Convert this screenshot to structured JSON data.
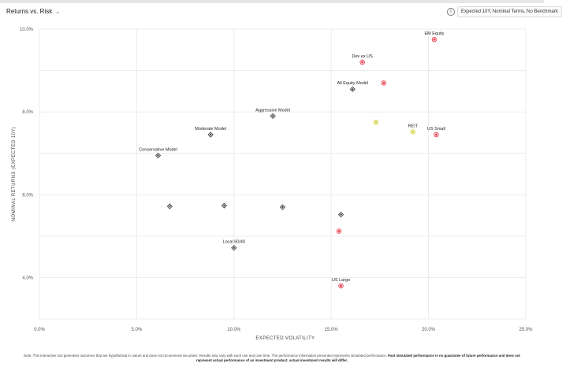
{
  "header": {
    "title": "Returns vs. Risk",
    "settings_label": "Expected 10Y, Nominal Terms, No Benchmark"
  },
  "footer": {
    "note_regular": "Note: This interactive tool generates outcomes that are hypothetical in nature and does not recommend securities. Results may vary with each use and over time. The performance information presented represents simulated performance.",
    "note_bold": "Past simulated performance is no guarantee of future performance and does not represent actual performance of an investment product; actual investment results will differ."
  },
  "colors": {
    "grid": "#e8e8e8",
    "asset_red": "#e84a5a",
    "asset_yellow": "#d4d64a",
    "model_diamond": "#444444"
  },
  "chart_data": {
    "type": "scatter",
    "xlabel": "EXPECTED VOLATILITY",
    "ylabel": "NOMINAL RETURNS (EXPECTED 10Y)",
    "xlim": [
      0,
      25
    ],
    "ylim": [
      3.0,
      10.0
    ],
    "x_ticks": [
      "0.0%",
      "5.0%",
      "10.0%",
      "15.0%",
      "20.0%",
      "25.0%"
    ],
    "x_tick_values": [
      0,
      5,
      10,
      15,
      20,
      25
    ],
    "y_ticks": [
      "4.0%",
      "6.0%",
      "8.0%",
      "10.0%"
    ],
    "y_tick_values": [
      4,
      6,
      8,
      10
    ],
    "grid": true,
    "points": [
      {
        "label": "EM Equity",
        "x": 20.3,
        "y": 9.75,
        "marker": "circle",
        "color": "red"
      },
      {
        "label": "Dev ex US",
        "x": 16.6,
        "y": 9.2,
        "marker": "circle",
        "color": "red"
      },
      {
        "label": "",
        "x": 17.7,
        "y": 8.7,
        "marker": "circle",
        "color": "red"
      },
      {
        "label": "All Equity Model",
        "x": 16.1,
        "y": 8.55,
        "marker": "diamond",
        "color": "model"
      },
      {
        "label": "Aggressive Model",
        "x": 12.0,
        "y": 7.9,
        "marker": "diamond",
        "color": "model"
      },
      {
        "label": "",
        "x": 17.3,
        "y": 7.75,
        "marker": "circle",
        "color": "yellow"
      },
      {
        "label": "REIT",
        "x": 19.2,
        "y": 7.52,
        "marker": "circle",
        "color": "yellow"
      },
      {
        "label": "US Small",
        "x": 20.4,
        "y": 7.45,
        "marker": "circle",
        "color": "red"
      },
      {
        "label": "Moderate Model",
        "x": 8.8,
        "y": 7.45,
        "marker": "diamond",
        "color": "model"
      },
      {
        "label": "Conservative Model",
        "x": 6.1,
        "y": 6.95,
        "marker": "diamond",
        "color": "model"
      },
      {
        "label": "",
        "x": 6.7,
        "y": 5.72,
        "marker": "diamond",
        "color": "model"
      },
      {
        "label": "",
        "x": 9.5,
        "y": 5.74,
        "marker": "diamond",
        "color": "model"
      },
      {
        "label": "",
        "x": 12.5,
        "y": 5.7,
        "marker": "diamond",
        "color": "model"
      },
      {
        "label": "",
        "x": 15.5,
        "y": 5.52,
        "marker": "diamond",
        "color": "model"
      },
      {
        "label": "",
        "x": 15.4,
        "y": 5.12,
        "marker": "circle",
        "color": "red"
      },
      {
        "label": "Local 60/40",
        "x": 10.0,
        "y": 4.72,
        "marker": "diamond",
        "color": "model"
      },
      {
        "label": "US Large",
        "x": 15.5,
        "y": 3.8,
        "marker": "circle",
        "color": "red"
      }
    ]
  }
}
